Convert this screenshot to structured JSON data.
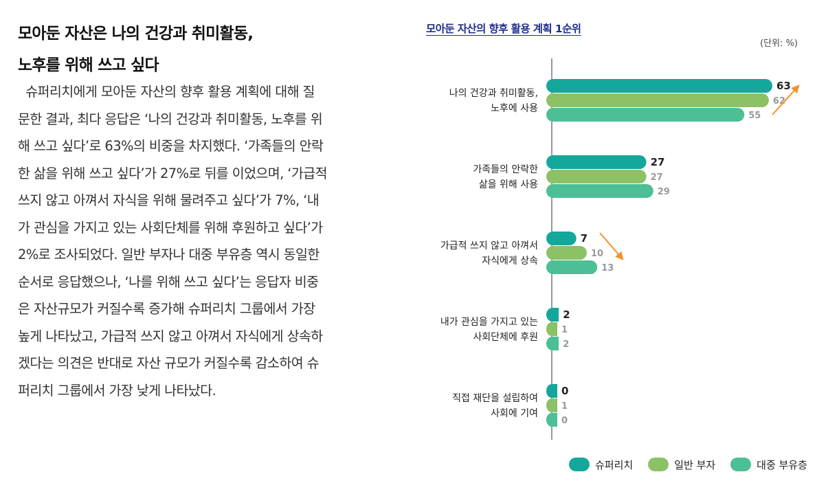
{
  "article": {
    "heading_lines": [
      "모아둔 자산은 나의 건강과 취미활동,",
      "노후를 위해 쓰고 싶다"
    ],
    "body_lines": [
      "  슈퍼리치에게 모아둔 자산의 향후 활용 계획에 대해 질",
      "문한 결과, 최다 응답은 ‘나의 건강과 취미활동, 노후를 위",
      "해 쓰고 싶다’로 63%의 비중을 차지했다. ‘가족들의 안락",
      "한 삶을 위해 쓰고 싶다’가 27%로 뒤를 이었으며, ‘가급적",
      "쓰지 않고 아껴서 자식을 위해 물려주고 싶다’가 7%, ‘내",
      "가 관심을 가지고 있는 사회단체를 위해 후원하고 싶다’가",
      "2%로 조사되었다. 일반 부자나 대중 부유층 역시 동일한",
      "순서로 응답했으나, ‘나를 위해 쓰고 싶다’는 응답자 비중",
      "은 자산규모가 커질수록 증가해 슈퍼리치 그룹에서 가장",
      "높게 나타났고, 가급적 쓰지 않고 아껴서 자식에게 상속하",
      "겠다는 의견은 반대로 자산 규모가 커질수록 감소하여 슈",
      "퍼리치 그룹에서 가장 낮게 나타났다."
    ]
  },
  "chart_data": {
    "type": "bar",
    "orientation": "horizontal",
    "title": "모아둔 자산의 향후 활용 계획 1순위",
    "unit_label": "(단위: %)",
    "categories": [
      [
        "나의 건강과 취미활동,",
        "노후에 사용"
      ],
      [
        "가족들의 안락한",
        "삶을 위해 사용"
      ],
      [
        "가급적 쓰지 않고 아껴서",
        "자식에게 상속"
      ],
      [
        "내가 관심을 가지고 있는",
        "사회단체에 후원"
      ],
      [
        "직접 재단을 설립하여",
        "사회에 기여"
      ]
    ],
    "series": [
      {
        "name": "슈퍼리치",
        "color": "#14a79b",
        "values": [
          63,
          27,
          7,
          2,
          0
        ]
      },
      {
        "name": "일반 부자",
        "color": "#8cc165",
        "values": [
          62,
          27,
          10,
          1,
          1
        ]
      },
      {
        "name": "대중 부유층",
        "color": "#4dbf95",
        "values": [
          55,
          29,
          13,
          2,
          0
        ]
      }
    ],
    "xlim": [
      0,
      63
    ],
    "annotations": [
      {
        "type": "arrow",
        "direction": "up",
        "category_index": 0,
        "color": "#f0922a"
      },
      {
        "type": "arrow",
        "direction": "down",
        "category_index": 2,
        "color": "#f0922a"
      }
    ],
    "label_colors": {
      "primary": "#222222",
      "secondary": "#999999"
    }
  }
}
